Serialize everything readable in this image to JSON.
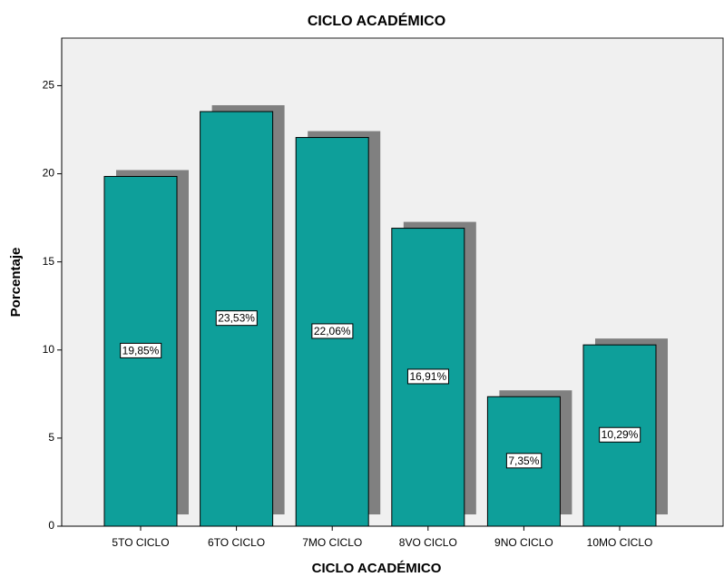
{
  "chart_data": {
    "type": "bar",
    "title": "CICLO ACADÉMICO",
    "x_label": "CICLO ACADÉMICO",
    "y_label": "Porcentaje",
    "categories": [
      "5TO CICLO",
      "6TO CICLO",
      "7MO CICLO",
      "8VO CICLO",
      "9NO CICLO",
      "10MO CICLO"
    ],
    "values": [
      19.85,
      23.53,
      22.06,
      16.91,
      7.35,
      10.29
    ],
    "value_labels": [
      "19,85%",
      "23,53%",
      "22,06%",
      "16,91%",
      "7,35%",
      "10,29%"
    ],
    "color": "#0e9f9a",
    "ylim": [
      0,
      27.7
    ],
    "yticks": [
      0,
      5,
      10,
      15,
      20,
      25
    ]
  }
}
